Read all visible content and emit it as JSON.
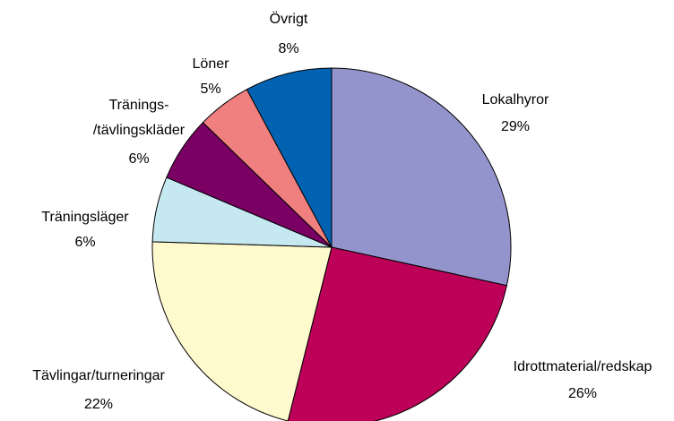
{
  "chart_data": {
    "type": "pie",
    "categories": [
      "Lokalhyror",
      "Idrottmaterial/redskap",
      "Tävlingar/turneringar",
      "Träningsläger",
      "Tränings-\n/tävlingskläder",
      "Löner",
      "Övrigt"
    ],
    "values": [
      29,
      26,
      22,
      6,
      6,
      5,
      8
    ],
    "value_labels": [
      "29%",
      "26%",
      "22%",
      "6%",
      "6%",
      "5%",
      "8%"
    ],
    "colors": [
      "#9494cc",
      "#bd0058",
      "#fffacd",
      "#c6e8f0",
      "#7a0064",
      "#f08080",
      "#0062b0"
    ]
  }
}
